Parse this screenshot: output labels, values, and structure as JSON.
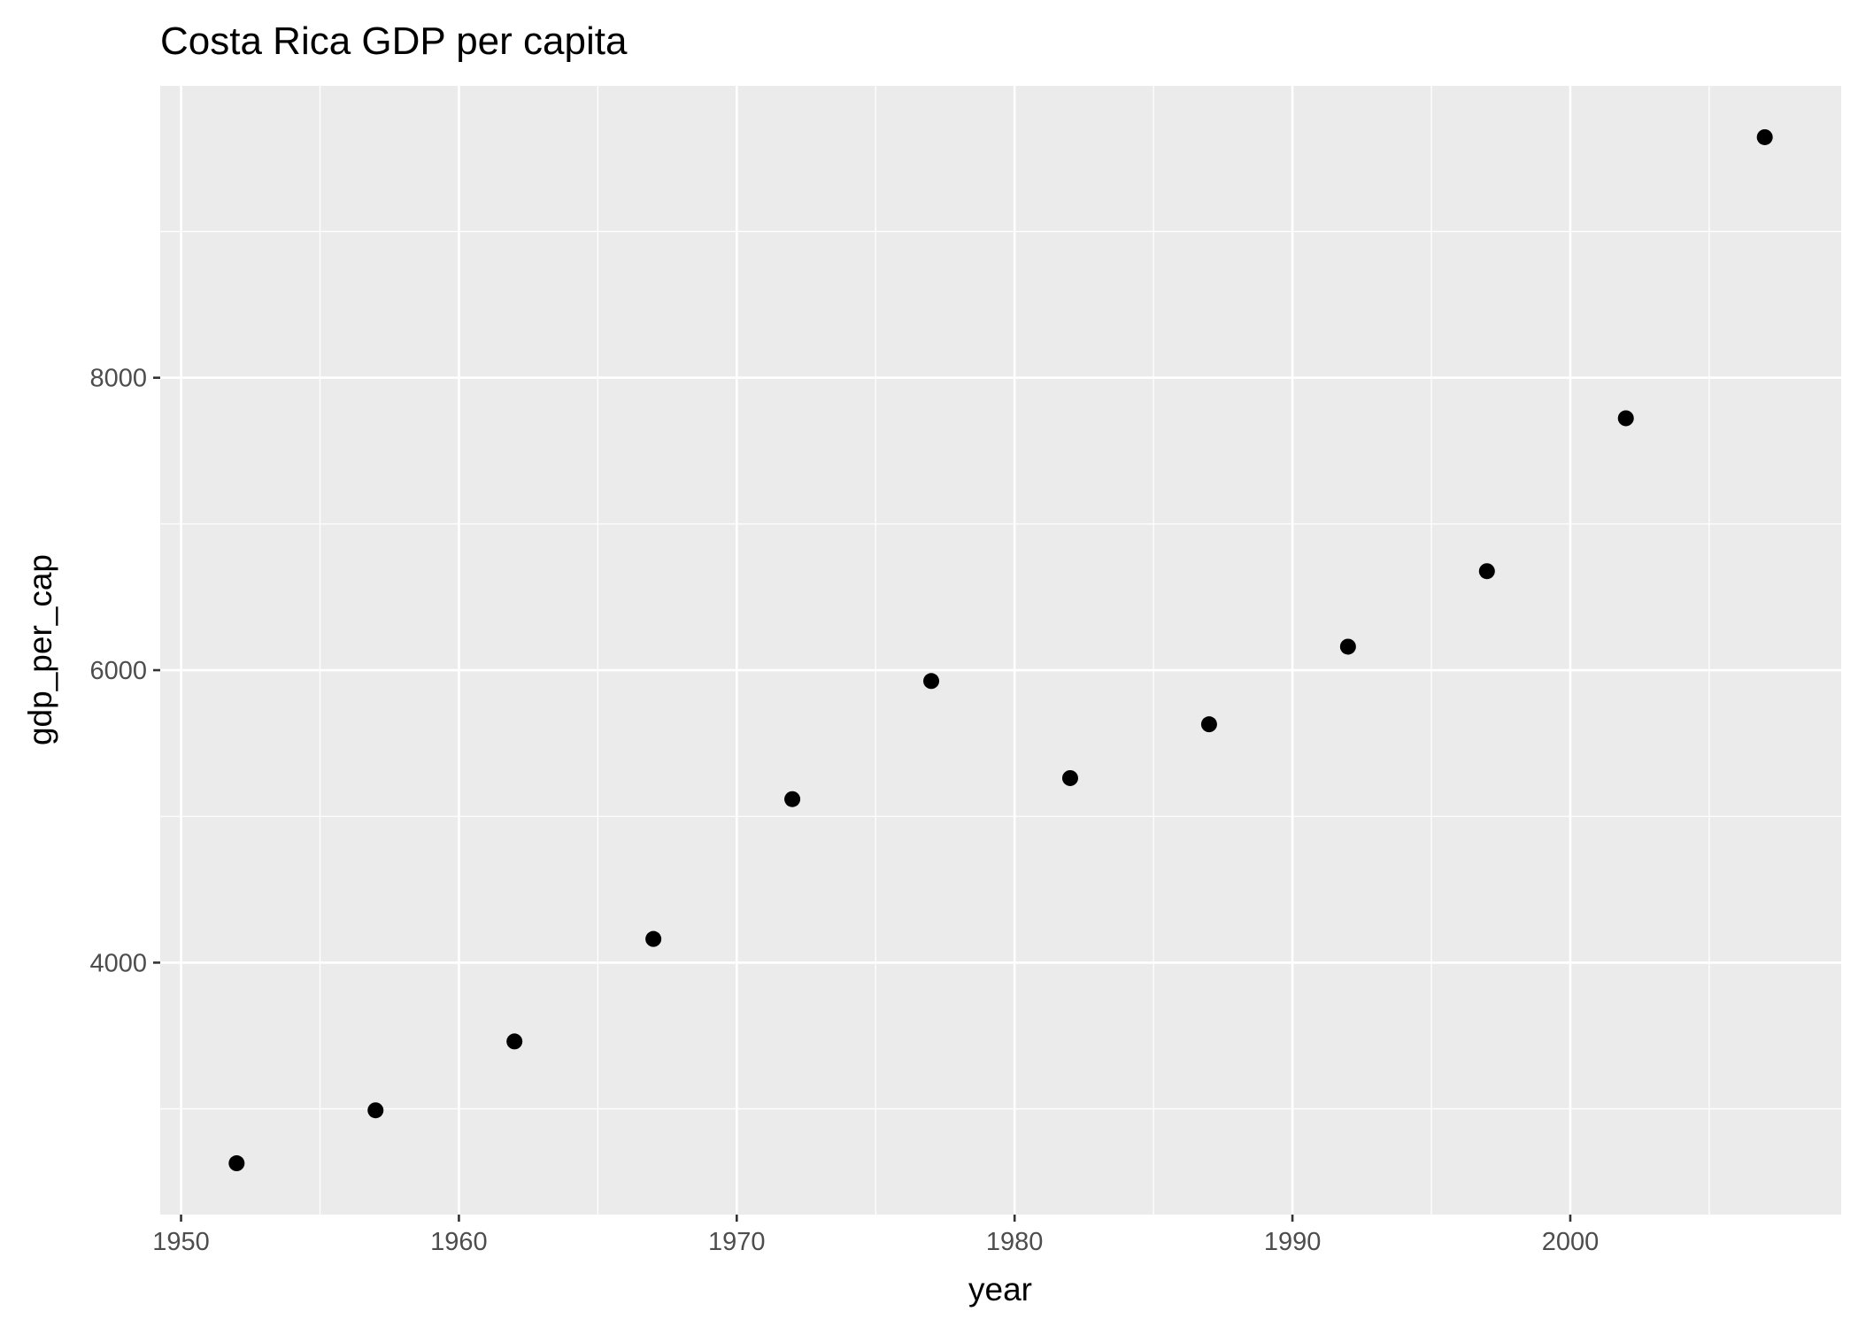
{
  "chart_data": {
    "type": "scatter",
    "title": "Costa Rica GDP per capita",
    "xlabel": "year",
    "ylabel": "gdp_per_cap",
    "x": [
      1952,
      1957,
      1962,
      1967,
      1972,
      1977,
      1982,
      1987,
      1992,
      1997,
      2002,
      2007
    ],
    "y": [
      2628,
      2990,
      3461,
      4162,
      5118,
      5926,
      5262,
      5630,
      6161,
      6677,
      7723,
      9645
    ],
    "xlim": [
      1949.25,
      2009.75
    ],
    "ylim": [
      2277,
      9996
    ],
    "x_ticks": [
      1950,
      1960,
      1970,
      1980,
      1990,
      2000
    ],
    "x_tick_labels": [
      "1950",
      "1960",
      "1970",
      "1980",
      "1990",
      "2000"
    ],
    "x_minor_ticks": [
      1955,
      1965,
      1975,
      1985,
      1995,
      2005
    ],
    "y_ticks": [
      4000,
      6000,
      8000
    ],
    "y_tick_labels": [
      "4000",
      "6000",
      "8000"
    ],
    "y_minor_ticks": [
      3000,
      5000,
      7000,
      9000
    ],
    "grid": true,
    "legend": "none",
    "colors": {
      "panel": "#ebebeb",
      "grid": "#ffffff",
      "point": "#000000",
      "tick_label": "#4d4d4d"
    }
  }
}
